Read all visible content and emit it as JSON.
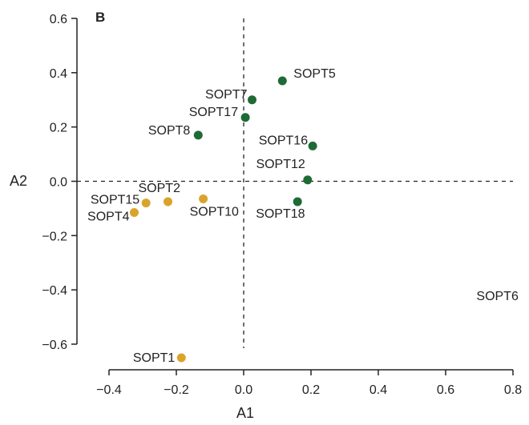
{
  "chart_data": {
    "type": "scatter",
    "panel_label": "B",
    "xlabel": "A1",
    "ylabel": "A2",
    "xlim": [
      -0.4,
      0.8
    ],
    "ylim": [
      -0.6,
      0.6
    ],
    "x_ticks": [
      "−0.4",
      "−0.2",
      "0.0",
      "0.2",
      "0.4",
      "0.6",
      "0.8"
    ],
    "y_ticks": [
      "0.6",
      "0.4",
      "0.2",
      "0.0",
      "−0.2",
      "−0.4",
      "−0.6"
    ],
    "reference_lines": {
      "x": 0,
      "y": 0,
      "style": "dashed"
    },
    "grid": false,
    "colors": {
      "group_green": "#1e6b35",
      "group_gold": "#d9a42c"
    },
    "points": [
      {
        "label": "SOPT5",
        "x": 0.115,
        "y": 0.37,
        "color": "#1e6b35"
      },
      {
        "label": "SOPT7",
        "x": 0.025,
        "y": 0.3,
        "color": "#1e6b35"
      },
      {
        "label": "SOPT17",
        "x": 0.005,
        "y": 0.235,
        "color": "#1e6b35"
      },
      {
        "label": "SOPT8",
        "x": -0.135,
        "y": 0.17,
        "color": "#1e6b35"
      },
      {
        "label": "SOPT16",
        "x": 0.205,
        "y": 0.13,
        "color": "#1e6b35"
      },
      {
        "label": "SOPT12",
        "x": 0.19,
        "y": 0.005,
        "color": "#1e6b35"
      },
      {
        "label": "SOPT18",
        "x": 0.16,
        "y": -0.075,
        "color": "#1e6b35"
      },
      {
        "label": "SOPT10",
        "x": -0.12,
        "y": -0.065,
        "color": "#d9a42c"
      },
      {
        "label": "SOPT2",
        "x": -0.225,
        "y": -0.075,
        "color": "#d9a42c"
      },
      {
        "label": "SOPT15",
        "x": -0.29,
        "y": -0.08,
        "color": "#d9a42c"
      },
      {
        "label": "SOPT4",
        "x": -0.325,
        "y": -0.115,
        "color": "#d9a42c"
      },
      {
        "label": "SOPT1",
        "x": -0.185,
        "y": -0.65,
        "color": "#d9a42c"
      }
    ],
    "unplotted_labels": [
      {
        "label": "SOPT6",
        "x": 0.72,
        "y": -0.42
      }
    ]
  }
}
